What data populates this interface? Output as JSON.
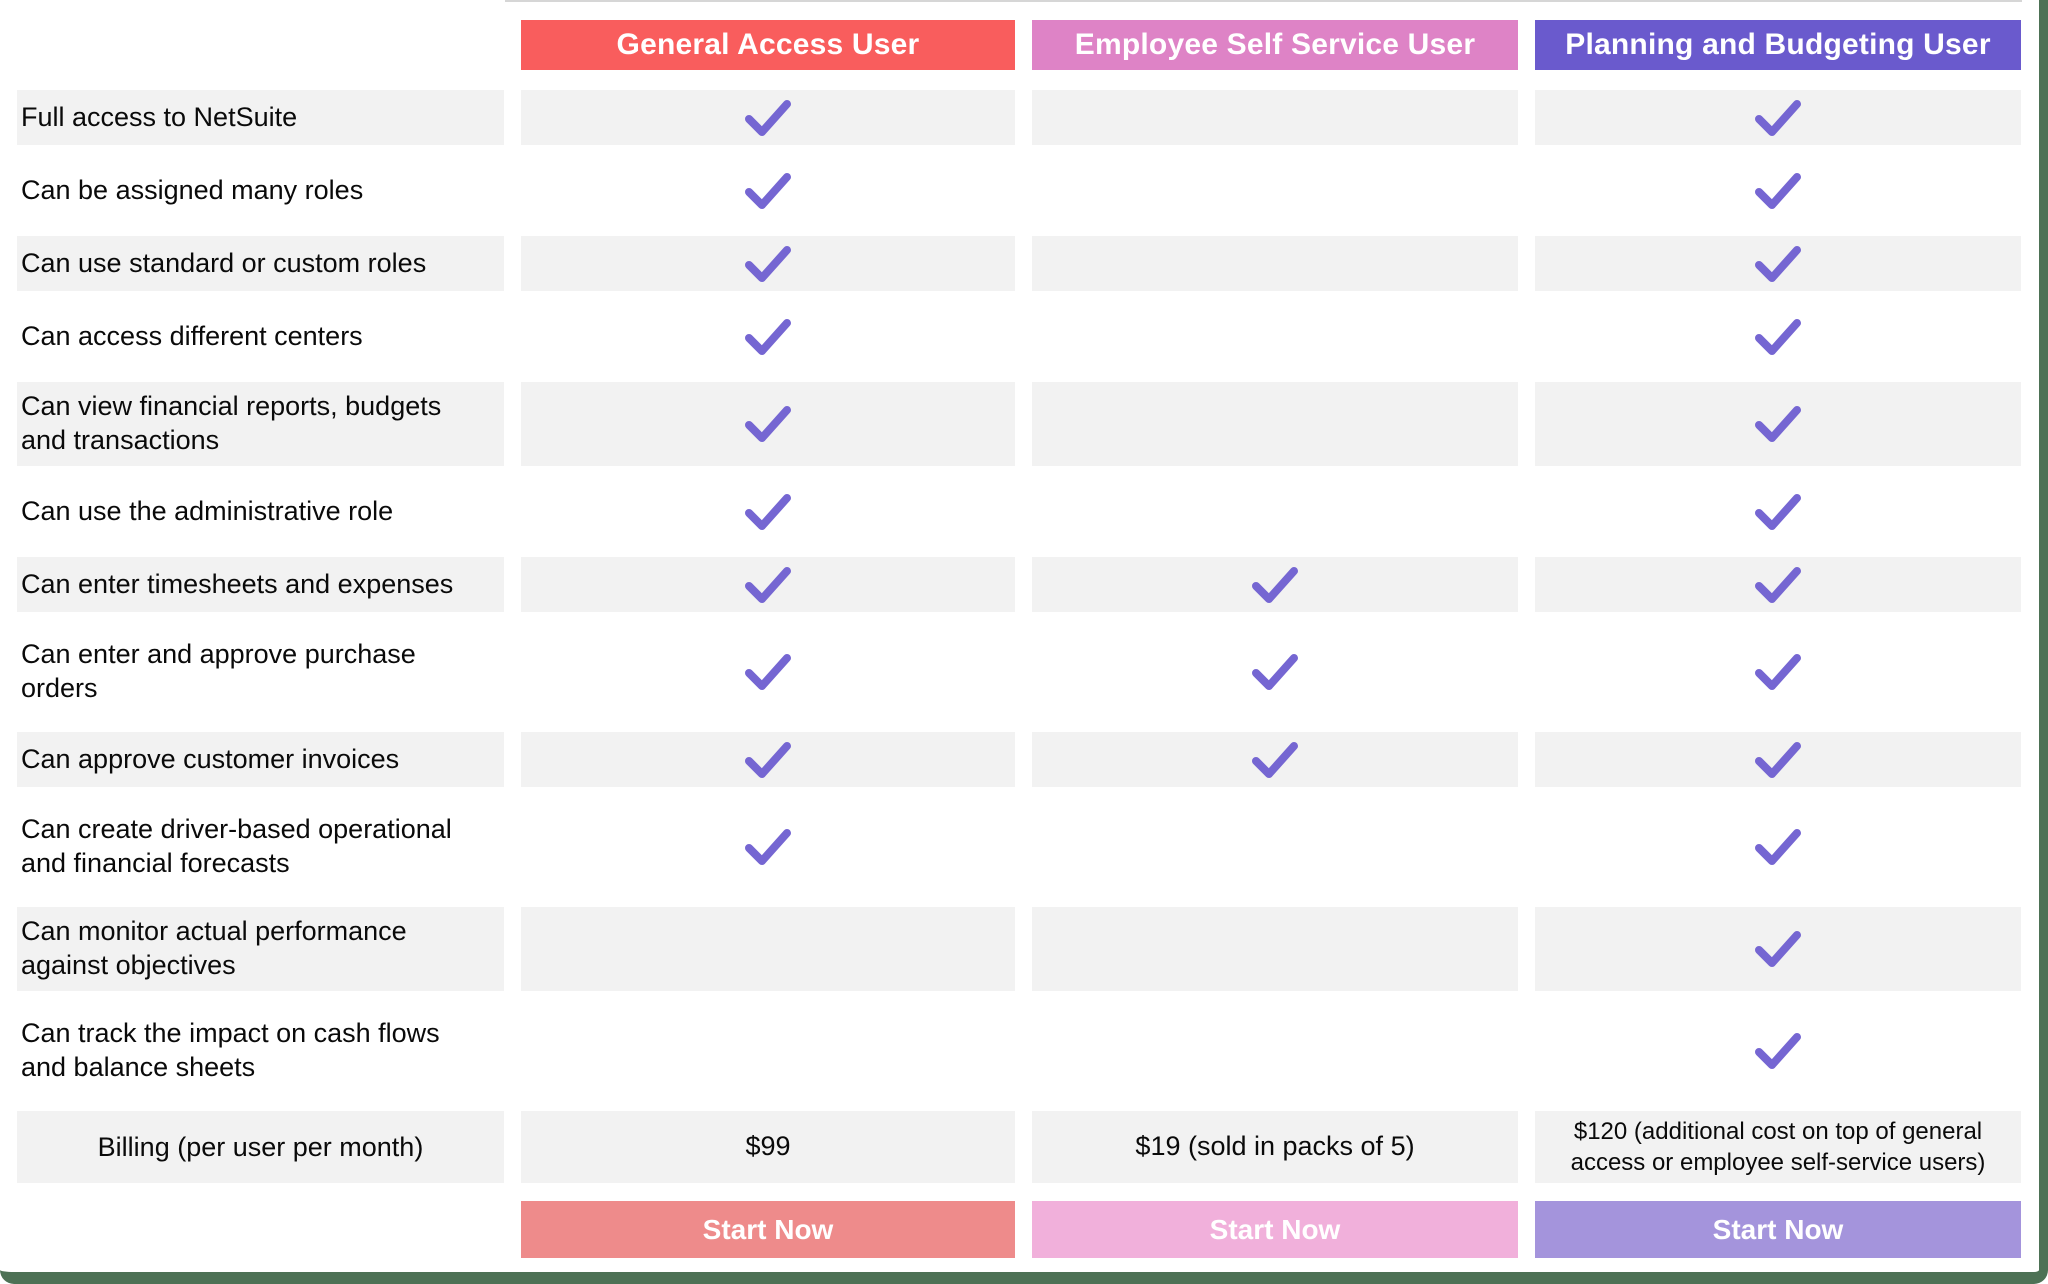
{
  "colors": {
    "frame_green": "#4d7155",
    "row_shade": "#f2f2f2",
    "check": "#7566d2",
    "top_hairline": "#d6d6d6"
  },
  "plans": [
    {
      "name": "General Access User",
      "header_color": "#f95d5d",
      "button_color": "#ee8b8b",
      "button_label": "Start Now",
      "billing": "$99"
    },
    {
      "name": "Employee Self Service User",
      "header_color": "#de83c6",
      "button_color": "#f1b0db",
      "button_label": "Start Now",
      "billing": "$19 (sold in packs of 5)"
    },
    {
      "name": "Planning and Budgeting User",
      "header_color": "#6a5acd",
      "button_color": "#a494dc",
      "button_label": "Start Now",
      "billing": "$120 (additional cost on top of general\naccess or employee self-service users)"
    }
  ],
  "billing_row_label": "Billing (per user per month)",
  "features": [
    {
      "label": "Full access to NetSuite",
      "checks": [
        true,
        false,
        true
      ]
    },
    {
      "label": "Can be assigned many roles",
      "checks": [
        true,
        false,
        true
      ]
    },
    {
      "label": "Can use standard or custom roles",
      "checks": [
        true,
        false,
        true
      ]
    },
    {
      "label": "Can access different centers",
      "checks": [
        true,
        false,
        true
      ]
    },
    {
      "label": "Can view financial reports, budgets\nand transactions",
      "checks": [
        true,
        false,
        true
      ]
    },
    {
      "label": "Can use the administrative role",
      "checks": [
        true,
        false,
        true
      ]
    },
    {
      "label": "Can enter timesheets and expenses",
      "checks": [
        true,
        true,
        true
      ]
    },
    {
      "label": "Can enter and approve purchase\norders",
      "checks": [
        true,
        true,
        true
      ]
    },
    {
      "label": "Can approve customer invoices",
      "checks": [
        true,
        true,
        true
      ]
    },
    {
      "label": "Can create driver-based operational\nand financial forecasts",
      "checks": [
        true,
        false,
        true
      ]
    },
    {
      "label": "Can monitor actual performance\nagainst objectives",
      "checks": [
        false,
        false,
        true
      ]
    },
    {
      "label": "Can track the impact on cash flows\nand balance sheets",
      "checks": [
        false,
        false,
        true
      ]
    }
  ]
}
